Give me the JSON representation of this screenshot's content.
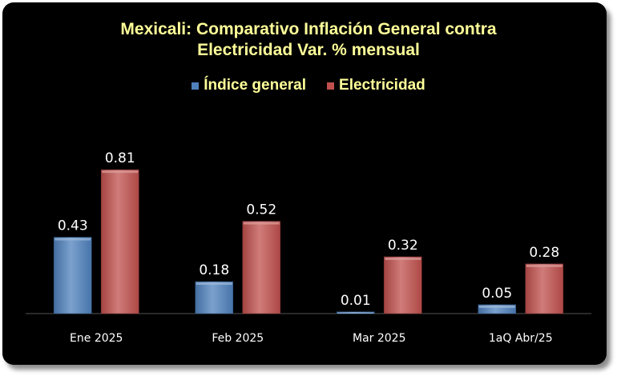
{
  "chart_data": {
    "type": "bar",
    "title_lines": [
      "Mexicali: Comparativo Inflación General contra",
      "Electricidad Var. % mensual"
    ],
    "categories": [
      "Ene 2025",
      "Feb 2025",
      "Mar 2025",
      "1aQ Abr/25"
    ],
    "series": [
      {
        "name": "Índice general",
        "values": [
          0.43,
          0.18,
          0.01,
          0.05
        ],
        "color": "#4f81bd"
      },
      {
        "name": "Electricidad",
        "values": [
          0.81,
          0.52,
          0.32,
          0.28
        ],
        "color": "#c0504d"
      }
    ],
    "value_labels": {
      "Índice general": [
        "0.43",
        "0.18",
        "0.01",
        "0.05"
      ],
      "Electricidad": [
        "0.81",
        "0.52",
        "0.32",
        "0.28"
      ]
    },
    "ylim": [
      0,
      1.0
    ],
    "legend_position": "top",
    "grid": false,
    "background": "#000000",
    "title_color": "#ffff99",
    "label_color": "#ffffff"
  }
}
